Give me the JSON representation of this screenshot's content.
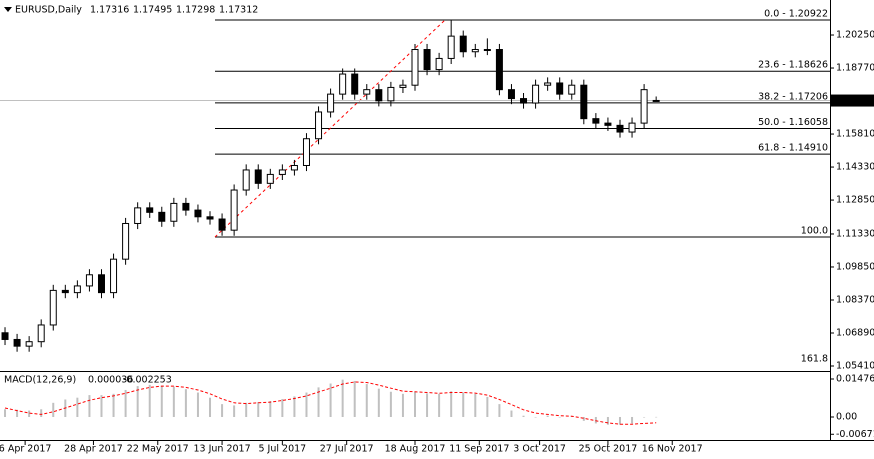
{
  "chart_data": [
    {
      "type": "candlestick",
      "title": "EURUSD,Daily",
      "x": [
        0,
        3,
        6,
        9,
        12,
        15,
        18,
        21,
        24,
        27,
        30,
        33,
        36,
        39,
        42,
        45,
        48,
        51,
        54,
        57,
        60,
        63,
        66,
        69,
        72,
        75,
        78,
        81,
        84,
        87,
        90,
        93,
        96,
        99,
        102,
        105,
        108,
        111,
        114,
        117,
        120,
        123,
        126,
        129,
        132,
        135,
        138,
        141,
        144,
        147,
        150,
        153,
        156,
        159,
        162
      ],
      "open": [
        1.069,
        1.066,
        1.063,
        1.065,
        1.0725,
        1.088,
        1.087,
        1.09,
        1.095,
        1.087,
        1.102,
        1.118,
        1.125,
        1.123,
        1.119,
        1.127,
        1.124,
        1.121,
        1.12,
        1.115,
        1.133,
        1.142,
        1.136,
        1.14,
        1.142,
        1.144,
        1.156,
        1.168,
        1.176,
        1.185,
        1.176,
        1.178,
        1.173,
        1.179,
        1.18,
        1.196,
        1.187,
        1.192,
        1.202,
        1.195,
        1.196,
        1.196,
        1.178,
        1.174,
        1.172,
        1.18,
        1.181,
        1.176,
        1.18,
        1.165,
        1.163,
        1.162,
        1.159,
        1.163,
        1.17316
      ],
      "high": [
        1.0715,
        1.0685,
        1.0675,
        1.075,
        1.0905,
        1.0905,
        1.0925,
        1.0975,
        1.0975,
        1.1045,
        1.1205,
        1.1275,
        1.1275,
        1.1255,
        1.1295,
        1.1295,
        1.1265,
        1.1235,
        1.1225,
        1.1355,
        1.1445,
        1.1445,
        1.1425,
        1.1445,
        1.1465,
        1.1585,
        1.1705,
        1.1785,
        1.1875,
        1.1875,
        1.1805,
        1.1805,
        1.1815,
        1.1825,
        1.1985,
        1.1985,
        1.1945,
        1.20922,
        1.2045,
        1.1985,
        1.201,
        1.1985,
        1.1805,
        1.1765,
        1.1825,
        1.1835,
        1.1835,
        1.1825,
        1.1825,
        1.1675,
        1.1655,
        1.1645,
        1.1655,
        1.1805,
        1.17495
      ],
      "low": [
        1.0635,
        1.0605,
        1.0605,
        1.0625,
        1.07,
        1.0845,
        1.0845,
        1.0875,
        1.0845,
        1.0845,
        1.0995,
        1.1155,
        1.1205,
        1.1165,
        1.1165,
        1.1215,
        1.1185,
        1.1175,
        1.1125,
        1.1125,
        1.1305,
        1.1335,
        1.1335,
        1.1375,
        1.1395,
        1.1415,
        1.1535,
        1.1655,
        1.1735,
        1.1735,
        1.1735,
        1.1705,
        1.1705,
        1.1765,
        1.1775,
        1.1845,
        1.1845,
        1.1895,
        1.1925,
        1.1925,
        1.1935,
        1.1755,
        1.1715,
        1.1695,
        1.1695,
        1.1775,
        1.1735,
        1.1735,
        1.1625,
        1.1605,
        1.1595,
        1.1565,
        1.1565,
        1.1605,
        1.17298
      ],
      "close": [
        1.066,
        1.063,
        1.065,
        1.0725,
        1.088,
        1.087,
        1.09,
        1.095,
        1.087,
        1.102,
        1.118,
        1.125,
        1.123,
        1.119,
        1.127,
        1.124,
        1.121,
        1.12,
        1.115,
        1.133,
        1.142,
        1.136,
        1.14,
        1.142,
        1.144,
        1.156,
        1.168,
        1.176,
        1.185,
        1.176,
        1.178,
        1.173,
        1.179,
        1.18,
        1.196,
        1.187,
        1.192,
        1.202,
        1.195,
        1.196,
        1.196,
        1.178,
        1.174,
        1.172,
        1.18,
        1.181,
        1.176,
        1.18,
        1.165,
        1.163,
        1.162,
        1.159,
        1.163,
        1.178,
        1.17312
      ],
      "xlim": [
        -1.25,
        205.25
      ],
      "ylim": [
        1.05186,
        1.2182
      ],
      "yticks": [
        {
          "value": 1.2025,
          "label": "1.20250"
        },
        {
          "value": 1.1877,
          "label": "1.18770"
        },
        {
          "value": 1.1581,
          "label": "1.15810"
        },
        {
          "value": 1.1433,
          "label": "1.14330"
        },
        {
          "value": 1.1285,
          "label": "1.12850"
        },
        {
          "value": 1.1133,
          "label": "1.11330"
        },
        {
          "value": 1.0985,
          "label": "1.09850"
        },
        {
          "value": 1.0837,
          "label": "1.08370"
        },
        {
          "value": 1.0689,
          "label": "1.06890"
        },
        {
          "value": 1.0541,
          "label": "1.05410"
        }
      ],
      "xticks": [
        {
          "value": 5,
          "label": "6 Apr 2017"
        },
        {
          "value": 22,
          "label": "28 Apr 2017"
        },
        {
          "value": 38,
          "label": "22 May 2017"
        },
        {
          "value": 54,
          "label": "13 Jun 2017"
        },
        {
          "value": 69,
          "label": "5 Jul 2017"
        },
        {
          "value": 85,
          "label": "27 Jul 2017"
        },
        {
          "value": 102,
          "label": "18 Aug 2017"
        },
        {
          "value": 118,
          "label": "11 Sep 2017"
        },
        {
          "value": 133,
          "label": "3 Oct 2017"
        },
        {
          "value": 150,
          "label": "25 Oct 2017"
        },
        {
          "value": 166,
          "label": "16 Nov 2017"
        }
      ],
      "fib_levels": [
        {
          "value": 1.20922,
          "label": "0.0 - 1.20922"
        },
        {
          "value": 1.18626,
          "label": "23.6 - 1.18626"
        },
        {
          "value": 1.17206,
          "label": "38.2 - 1.17206"
        },
        {
          "value": 1.16058,
          "label": "50.0 - 1.16058"
        },
        {
          "value": 1.1491,
          "label": "61.8 - 1.14910"
        },
        {
          "value": 1.11194,
          "label": "100.0"
        },
        {
          "value": 1.05182,
          "label": "161.8"
        }
      ],
      "up_color": "#ffffff",
      "down_color": "#000000",
      "fib_color": "#000000",
      "fib_trend_color": "#ff0000",
      "price_line_color": "#c0c0c0"
    },
    {
      "type": "macd",
      "title": "MACD(12,26,9)",
      "x": [
        0,
        3,
        6,
        9,
        12,
        15,
        18,
        21,
        24,
        27,
        30,
        33,
        36,
        39,
        42,
        45,
        48,
        51,
        54,
        57,
        60,
        63,
        66,
        69,
        72,
        75,
        78,
        81,
        84,
        87,
        90,
        93,
        96,
        99,
        102,
        105,
        108,
        111,
        114,
        117,
        120,
        123,
        126,
        129,
        132,
        135,
        138,
        141,
        144,
        147,
        150,
        153,
        156,
        159,
        162
      ],
      "histogram": [
        0.003,
        0.0028,
        0.0025,
        0.003,
        0.0055,
        0.0068,
        0.0075,
        0.0085,
        0.0085,
        0.009,
        0.0105,
        0.012,
        0.0125,
        0.0122,
        0.0118,
        0.0108,
        0.0095,
        0.0075,
        0.005,
        0.0045,
        0.0055,
        0.0058,
        0.0062,
        0.007,
        0.008,
        0.0095,
        0.0115,
        0.013,
        0.0145,
        0.014,
        0.0128,
        0.011,
        0.0098,
        0.009,
        0.0098,
        0.0092,
        0.009,
        0.01,
        0.0095,
        0.009,
        0.0078,
        0.005,
        0.0025,
        0.0005,
        0.0,
        0.0005,
        0.0,
        0.0002,
        -0.0015,
        -0.0025,
        -0.003,
        -0.003,
        -0.0025,
        0.0,
        3.6e-05
      ],
      "signal": [
        0.0035,
        0.0025,
        0.0015,
        0.001,
        0.002,
        0.0035,
        0.005,
        0.0065,
        0.0075,
        0.0082,
        0.0092,
        0.0105,
        0.0115,
        0.012,
        0.012,
        0.0115,
        0.0105,
        0.009,
        0.007,
        0.0055,
        0.0052,
        0.0055,
        0.0058,
        0.0064,
        0.0072,
        0.0082,
        0.0097,
        0.0112,
        0.0128,
        0.0136,
        0.0134,
        0.0124,
        0.0112,
        0.01,
        0.0098,
        0.0095,
        0.0092,
        0.0095,
        0.0095,
        0.0093,
        0.0085,
        0.0068,
        0.0048,
        0.0028,
        0.0015,
        0.001,
        0.0005,
        0.0003,
        -0.0005,
        -0.0015,
        -0.0023,
        -0.0028,
        -0.0028,
        -0.0025,
        -0.002253
      ],
      "histogram_color": "#c0c0c0",
      "signal_color": "#ff0000",
      "xlim": [
        -1.25,
        205.25
      ],
      "ylim": [
        -0.00894,
        0.01709
      ],
      "yticks": [
        0.014763,
        {
          "value": 0,
          "label": "0.00"
        },
        -0.006713
      ]
    }
  ]
}
